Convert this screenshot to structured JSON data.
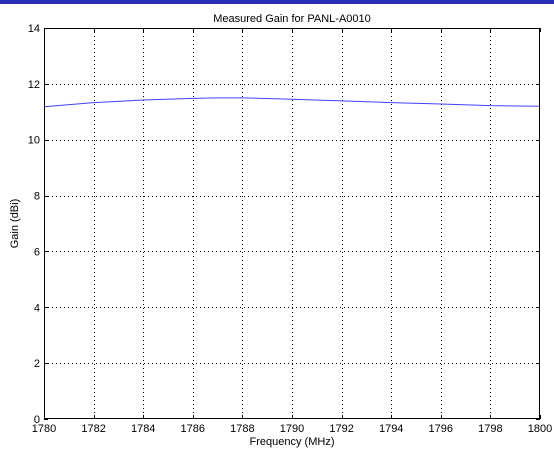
{
  "chart_data": {
    "type": "line",
    "title": "Measured Gain for PANL-A0010",
    "xlabel": "Frequency (MHz)",
    "ylabel": "Gain (dBi)",
    "xlim": [
      1780,
      1800
    ],
    "ylim": [
      0,
      14
    ],
    "xticks": [
      1780,
      1782,
      1784,
      1786,
      1788,
      1790,
      1792,
      1794,
      1796,
      1798,
      1800
    ],
    "yticks": [
      0,
      2,
      4,
      6,
      8,
      10,
      12,
      14
    ],
    "grid": true,
    "colors": {
      "line": "#4040ff",
      "grid": "#000000",
      "accent": "#2a2fb8"
    },
    "series": [
      {
        "x": [
          1780,
          1782,
          1784,
          1786,
          1787,
          1788,
          1790,
          1792,
          1794,
          1796,
          1798,
          1800
        ],
        "y": [
          11.18,
          11.33,
          11.42,
          11.48,
          11.5,
          11.5,
          11.45,
          11.39,
          11.33,
          11.28,
          11.22,
          11.2
        ]
      }
    ]
  }
}
